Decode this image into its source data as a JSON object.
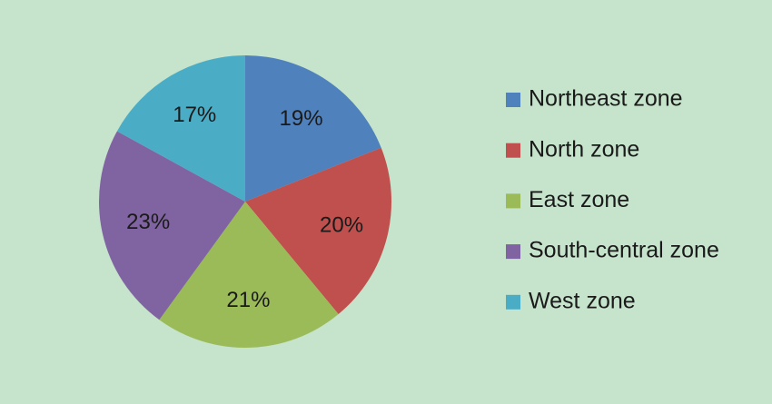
{
  "chart_data": {
    "type": "pie",
    "categories": [
      "Northeast zone",
      "North zone",
      "East zone",
      "South-central zone",
      "West zone"
    ],
    "values": [
      19,
      20,
      21,
      23,
      17
    ],
    "value_labels": [
      "19%",
      "20%",
      "21%",
      "23%",
      "17%"
    ],
    "colors": [
      "#4f81bd",
      "#c0504d",
      "#9bbb59",
      "#8064a2",
      "#4bacc6"
    ],
    "legend": "right"
  }
}
